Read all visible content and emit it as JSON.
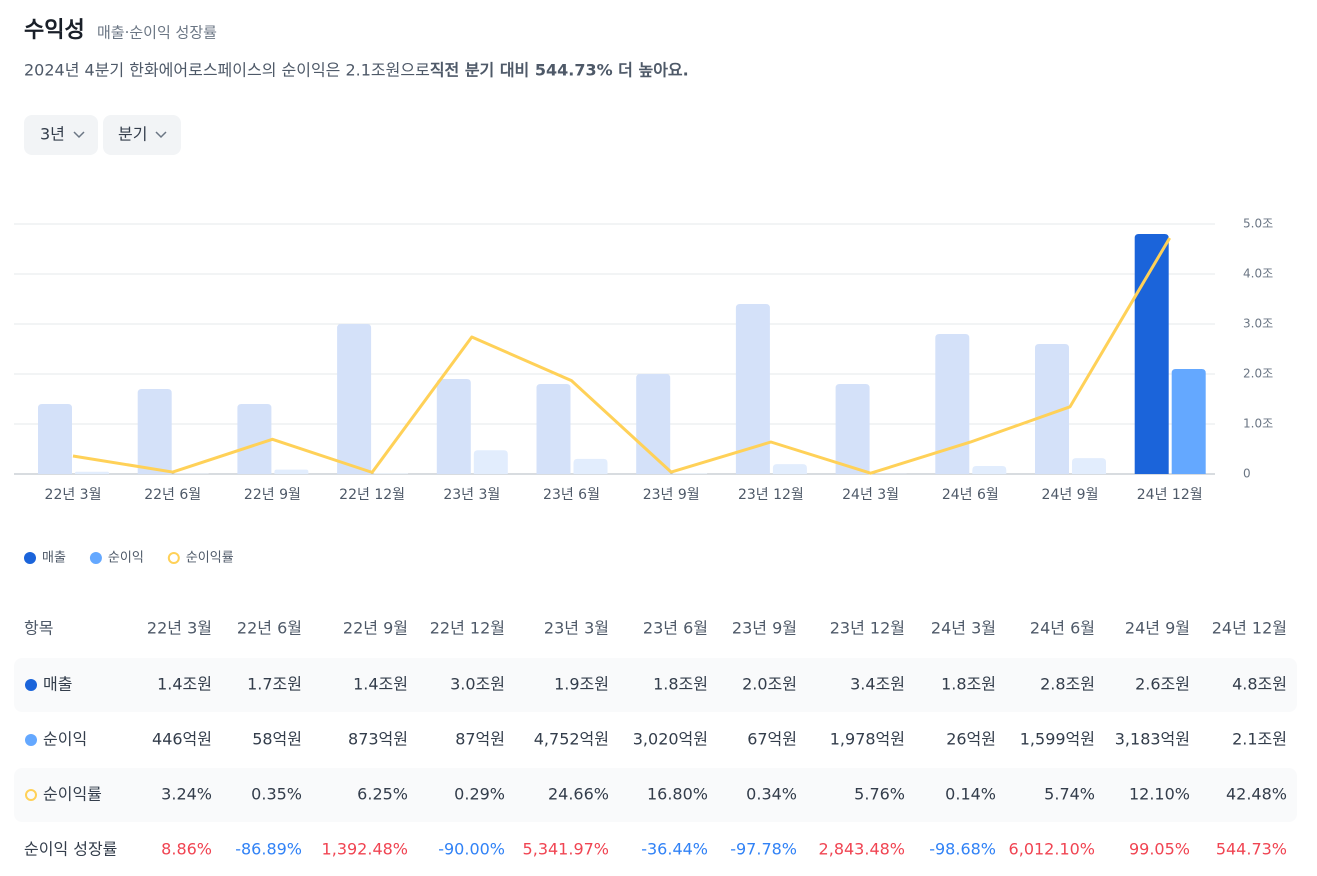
{
  "header": {
    "title": "수익성",
    "subtitle": "매출·순이익 성장률",
    "description": "2024년 4분기 한화에어로스페이스의 순이익은 2.1조원으로 ",
    "description_bold": "직전 분기 대비 544.73% 더 높아요."
  },
  "filters": [
    "3년",
    "분기"
  ],
  "chart_data": {
    "type": "bar",
    "categories": [
      "22년 3월",
      "22년 6월",
      "22년 9월",
      "22년 12월",
      "23년 3월",
      "23년 6월",
      "23년 9월",
      "23년 12월",
      "24년 3월",
      "24년 6월",
      "24년 9월",
      "24년 12월"
    ],
    "series": [
      {
        "name": "매출",
        "color": "#1b64da",
        "colors": [
          "#d4e1f9",
          "#d4e1f9",
          "#d4e1f9",
          "#d4e1f9",
          "#d4e1f9",
          "#d4e1f9",
          "#d4e1f9",
          "#d4e1f9",
          "#d4e1f9",
          "#d4e1f9",
          "#d4e1f9",
          "#1b64da"
        ],
        "values": [
          1.4,
          1.7,
          1.4,
          3.0,
          1.9,
          1.8,
          2.0,
          3.4,
          1.8,
          2.8,
          2.6,
          4.8
        ]
      },
      {
        "name": "순이익",
        "color": "#64a8ff",
        "colors": [
          "#e2edfd",
          "#e2edfd",
          "#e2edfd",
          "#e2edfd",
          "#e2edfd",
          "#e2edfd",
          "#e2edfd",
          "#e2edfd",
          "#e2edfd",
          "#e2edfd",
          "#e2edfd",
          "#64a8ff"
        ],
        "values": [
          0.0446,
          0.0058,
          0.0873,
          0.0087,
          0.4752,
          0.302,
          0.0067,
          0.1978,
          0.0026,
          0.1599,
          0.3183,
          2.1
        ]
      },
      {
        "name": "순이익률",
        "type": "line",
        "color": "#ffd158",
        "axis": "y2",
        "values": [
          3.24,
          0.35,
          6.25,
          0.29,
          24.66,
          16.8,
          0.34,
          5.76,
          0.14,
          5.74,
          12.1,
          42.48
        ]
      }
    ],
    "ylim": [
      0,
      5
    ],
    "y2lim": [
      0,
      45
    ],
    "yticks": [
      0,
      {
        "value": 1,
        "label": "1.0조"
      },
      {
        "value": 2,
        "label": "2.0조"
      },
      {
        "value": 3,
        "label": "3.0조"
      },
      {
        "value": 4,
        "label": "4.0조"
      },
      {
        "value": 5,
        "label": "5.0조"
      }
    ],
    "grid": true,
    "legend": "bottom-left"
  },
  "table": {
    "header": "항목",
    "rows": [
      [
        "1.4조원",
        "1.7조원",
        "1.4조원",
        "3.0조원",
        "1.9조원",
        "1.8조원",
        "2.0조원",
        "3.4조원",
        "1.8조원",
        "2.8조원",
        "2.6조원",
        "4.8조원"
      ],
      [
        "446억원",
        "58억원",
        "873억원",
        "87억원",
        "4,752억원",
        "3,020억원",
        "67억원",
        "1,978억원",
        "26억원",
        "1,599억원",
        "3,183억원",
        "2.1조원"
      ],
      [
        "3.24%",
        "0.35%",
        "6.25%",
        "0.29%",
        "24.66%",
        "16.80%",
        "0.34%",
        "5.76%",
        "0.14%",
        "5.74%",
        "12.10%",
        "42.48%"
      ]
    ],
    "growth_label": "순이익 성장률",
    "growth": [
      "8.86%",
      "-86.89%",
      "1,392.48%",
      "-90.00%",
      "5,341.97%",
      "-36.44%",
      "-97.78%",
      "2,843.48%",
      "-98.68%",
      "6,012.10%",
      "99.05%",
      "544.73%"
    ]
  }
}
